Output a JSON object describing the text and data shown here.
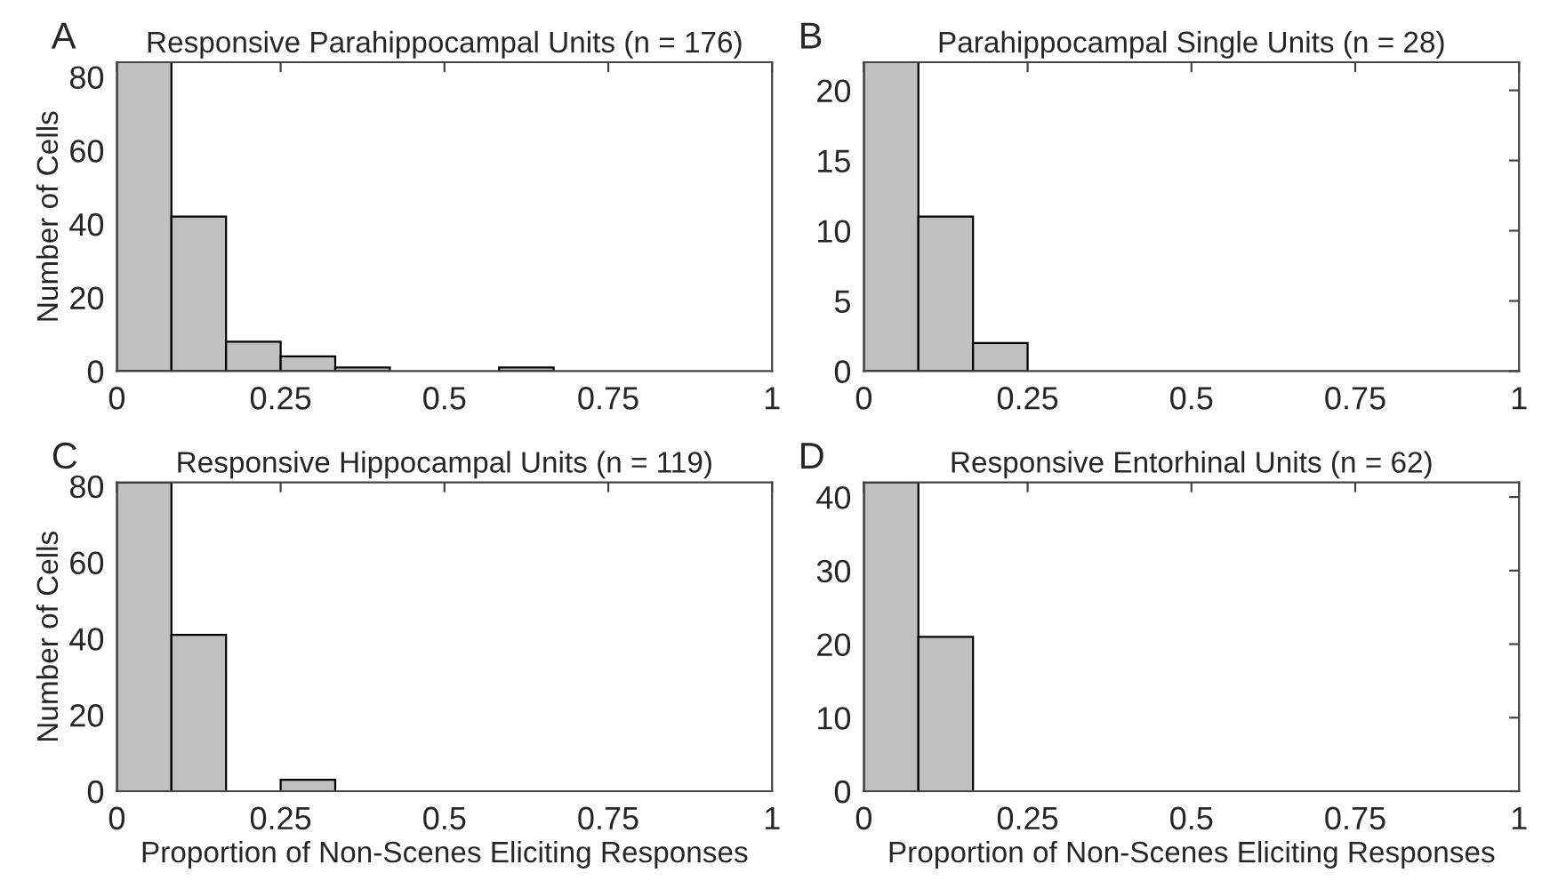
{
  "chart_data": [
    {
      "type": "histogram",
      "title": "Responsive Parahippocampal Units (n = 176)",
      "ylabel": "Number of Cells",
      "annotations": [
        "A"
      ],
      "color": "#c0c0c0",
      "bins": [
        0,
        0.0833,
        0.1667,
        0.25,
        0.3333,
        0.4167,
        0.5,
        0.5833,
        0.6667
      ],
      "values": [
        84,
        42,
        8,
        4,
        1,
        0,
        0,
        1
      ],
      "xlim": [
        0,
        1
      ],
      "xticks": [
        0,
        0.25,
        0.5,
        0.75,
        1
      ],
      "ylim": [
        0,
        84
      ],
      "yticks": [
        0,
        20,
        40,
        60,
        80
      ],
      "grid": false
    },
    {
      "type": "histogram",
      "title": "Parahippocampal Single Units (n = 28)",
      "annotations": [
        "B"
      ],
      "color": "#c0c0c0",
      "bins": [
        0,
        0.0833,
        0.1667,
        0.25
      ],
      "values": [
        22,
        11,
        2
      ],
      "xlim": [
        0,
        1
      ],
      "xticks": [
        0,
        0.25,
        0.5,
        0.75,
        1
      ],
      "ylim": [
        0,
        22
      ],
      "yticks": [
        0,
        5,
        10,
        15,
        20
      ],
      "grid": false
    },
    {
      "type": "histogram",
      "title": "Responsive Hippocampal Units (n = 119)",
      "xlabel": "Proportion of Non-Scenes Eliciting Responses",
      "ylabel": "Number of Cells",
      "annotations": [
        "C"
      ],
      "color": "#c0c0c0",
      "bins": [
        0,
        0.0833,
        0.1667,
        0.25,
        0.3333
      ],
      "values": [
        81,
        41,
        0,
        3
      ],
      "xlim": [
        0,
        1
      ],
      "xticks": [
        0,
        0.25,
        0.5,
        0.75,
        1
      ],
      "ylim": [
        0,
        81
      ],
      "yticks": [
        0,
        20,
        40,
        60,
        80
      ],
      "grid": false
    },
    {
      "type": "histogram",
      "title": "Responsive Entorhinal Units (n = 62)",
      "xlabel": "Proportion of Non-Scenes Eliciting Responses",
      "annotations": [
        "D"
      ],
      "color": "#c0c0c0",
      "bins": [
        0,
        0.0833,
        0.1667
      ],
      "values": [
        42,
        21
      ],
      "xlim": [
        0,
        1
      ],
      "xticks": [
        0,
        0.25,
        0.5,
        0.75,
        1
      ],
      "ylim": [
        0,
        42
      ],
      "yticks": [
        0,
        10,
        20,
        30,
        40
      ],
      "grid": false
    }
  ]
}
